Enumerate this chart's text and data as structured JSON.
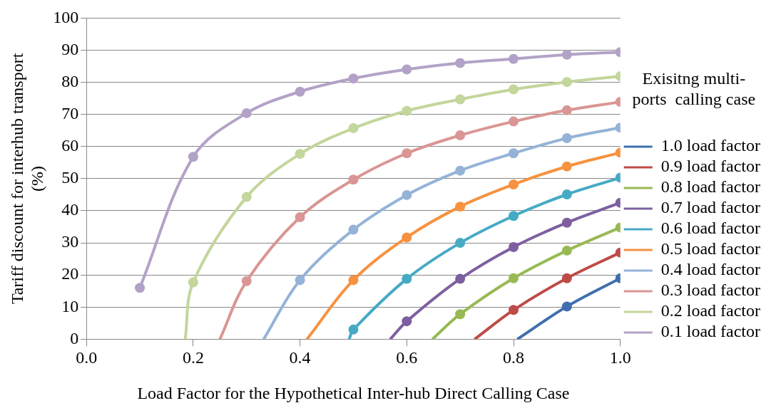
{
  "chart_data": {
    "type": "line",
    "xlabel": "Load Factor for the Hypothetical Inter-hub Direct Calling Case",
    "ylabel": "Tariff discount for interhub transport\n(%)",
    "legend_title": "Exisitng multi-\nports  calling case",
    "legend": "right",
    "grid": "y",
    "marker": "circle",
    "line_style": "solid",
    "xlim": [
      0,
      1
    ],
    "xticks": [
      {
        "value": 0,
        "label": "0.0"
      },
      {
        "value": 0.2,
        "label": "0.2"
      },
      {
        "value": 0.4,
        "label": "0.4"
      },
      {
        "value": 0.6,
        "label": "0.6"
      },
      {
        "value": 0.8,
        "label": "0.8"
      },
      {
        "value": 1,
        "label": "1.0"
      }
    ],
    "ylim": [
      0,
      100
    ],
    "yticks": [
      0,
      10,
      20,
      30,
      40,
      50,
      60,
      70,
      80,
      90,
      100
    ],
    "series": [
      {
        "name": "1.0 load factor",
        "color": "#3f6fae",
        "x": [
          0.807,
          0.9,
          1.0
        ],
        "values": [
          0,
          10.2,
          19.0
        ]
      },
      {
        "name": "0.9 load factor",
        "color": "#be4b48",
        "x": [
          0.727,
          0.8,
          0.9,
          1.0
        ],
        "values": [
          0,
          9.1,
          19.0,
          27.0
        ]
      },
      {
        "name": "0.8 load factor",
        "color": "#98b954",
        "x": [
          0.648,
          0.7,
          0.8,
          0.9,
          1.0
        ],
        "values": [
          0,
          7.8,
          19.0,
          27.6,
          34.8
        ]
      },
      {
        "name": "0.7 load factor",
        "color": "#7d5fa0",
        "x": [
          0.569,
          0.6,
          0.7,
          0.8,
          0.9,
          1.0
        ],
        "values": [
          0,
          5.6,
          18.8,
          28.7,
          36.3,
          42.5
        ]
      },
      {
        "name": "0.6 load factor",
        "color": "#46aac5",
        "x": [
          0.492,
          0.5,
          0.6,
          0.7,
          0.8,
          0.9,
          1.0
        ],
        "values": [
          0,
          3.0,
          18.8,
          30.0,
          38.4,
          45.1,
          50.3
        ]
      },
      {
        "name": "0.5 load factor",
        "color": "#f69240",
        "x": [
          0.413,
          0.5,
          0.6,
          0.7,
          0.8,
          0.9,
          1.0
        ],
        "values": [
          0,
          18.4,
          31.7,
          41.3,
          48.2,
          53.8,
          58.1
        ]
      },
      {
        "name": "0.4 load factor",
        "color": "#95b3d7",
        "x": [
          0.332,
          0.4,
          0.5,
          0.6,
          0.7,
          0.8,
          0.9,
          1.0
        ],
        "values": [
          0,
          18.4,
          34.1,
          44.9,
          52.5,
          57.9,
          62.6,
          65.9
        ]
      },
      {
        "name": "0.3 load factor",
        "color": "#d99694",
        "x": [
          0.25,
          0.3,
          0.4,
          0.5,
          0.6,
          0.7,
          0.8,
          0.9,
          1.0
        ],
        "values": [
          0,
          18.1,
          38.0,
          49.7,
          57.9,
          63.5,
          67.8,
          71.3,
          73.9
        ]
      },
      {
        "name": "0.2 load factor",
        "color": "#c3d69b",
        "x": [
          0.185,
          0.2,
          0.3,
          0.4,
          0.5,
          0.6,
          0.7,
          0.8,
          0.9,
          1.0
        ],
        "values": [
          0,
          17.7,
          44.3,
          57.7,
          65.7,
          71.1,
          74.7,
          77.8,
          80.1,
          81.9
        ]
      },
      {
        "name": "0.1 load factor",
        "color": "#b3a2c7",
        "x": [
          0.1,
          0.2,
          0.3,
          0.4,
          0.5,
          0.6,
          0.7,
          0.8,
          0.9,
          1.0
        ],
        "values": [
          16.0,
          56.8,
          70.4,
          77.1,
          81.2,
          84.0,
          86.0,
          87.3,
          88.6,
          89.4
        ]
      }
    ]
  }
}
